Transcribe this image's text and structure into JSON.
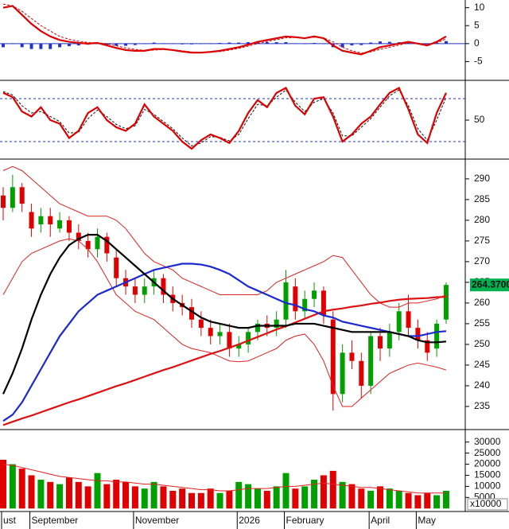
{
  "chart_data": [
    {
      "type": "line",
      "ylim": [
        -10,
        11.7
      ],
      "yticks": [
        10,
        5,
        0,
        -5
      ],
      "levels": [
        0
      ],
      "level_color": "#2030c0",
      "level_style": "solid",
      "series": [
        {
          "kind": "bar",
          "color": "#2233cc",
          "values": [
            -1,
            0,
            -1,
            -1.5,
            -1.5,
            -1.5,
            -1,
            -0.7,
            -0.5,
            -0.3,
            0,
            -0.5,
            -0.6,
            -0.6,
            -0.4,
            -0.1,
            0.3,
            0.1,
            -0.1,
            -0.2,
            -0.2,
            -0.1,
            0.1,
            0.2,
            0.3,
            0.3,
            0.4,
            0.5,
            0.4,
            0.4,
            0.4,
            0.1,
            -0.1,
            0.2,
            -0.1,
            -1,
            -1,
            -0.5,
            -0.4,
            0.3,
            0.6,
            0.5,
            0.4,
            0.3,
            -0.1,
            -0.2,
            0.3,
            0.7
          ]
        },
        {
          "kind": "line",
          "style": "dashed",
          "color": "#cc0000",
          "values": [
            11,
            10.5,
            9,
            7,
            5,
            3.5,
            2,
            1.2,
            0.7,
            0.3,
            0.2,
            0,
            -0.6,
            -1.2,
            -1.6,
            -1.9,
            -1.8,
            -1.6,
            -1.7,
            -2,
            -2.3,
            -2.4,
            -2.4,
            -2.2,
            -1.8,
            -1.3,
            -0.7,
            0,
            0.6,
            1.1,
            1.6,
            1.7,
            1.6,
            1.8,
            1.6,
            0.5,
            -1,
            -2,
            -2.6,
            -2.3,
            -1.6,
            -1,
            -0.4,
            0.2,
            0.1,
            -0.3,
            0.2,
            1.3
          ]
        },
        {
          "kind": "line",
          "style": "thick",
          "color": "#dd0000",
          "values": [
            10,
            10.5,
            8,
            5.5,
            3.5,
            2,
            1,
            0.5,
            0.2,
            0,
            0.2,
            -0.5,
            -1.2,
            -1.8,
            -2,
            -2,
            -1.5,
            -1.5,
            -1.8,
            -2.2,
            -2.5,
            -2.5,
            -2.3,
            -2,
            -1.5,
            -1,
            -0.3,
            0.5,
            1,
            1.5,
            2,
            1.8,
            1.5,
            2,
            1.5,
            -0.5,
            -2,
            -2.5,
            -3,
            -2,
            -1,
            -0.5,
            0,
            0.5,
            0,
            -0.5,
            0.5,
            2
          ]
        }
      ]
    },
    {
      "type": "line",
      "ylim": [
        -2.2,
        103.3
      ],
      "yticks": [
        50
      ],
      "levels": [
        80,
        20
      ],
      "level_color": "#2030c0",
      "level_style": "dashed",
      "series": [
        {
          "kind": "line",
          "style": "dashed",
          "color": "#111111",
          "values": [
            90,
            85,
            70,
            60,
            62,
            55,
            48,
            32,
            33,
            52,
            64,
            55,
            44,
            38,
            42,
            65,
            58,
            48,
            38,
            25,
            14,
            18,
            27,
            26,
            21,
            30,
            52,
            72,
            70,
            82,
            92,
            75,
            62,
            75,
            80,
            60,
            28,
            28,
            40,
            52,
            68,
            84,
            92,
            70,
            38,
            22,
            50,
            82
          ]
        },
        {
          "kind": "line",
          "style": "thick",
          "color": "#dd0000",
          "values": [
            88,
            82,
            62,
            55,
            68,
            50,
            45,
            25,
            35,
            60,
            68,
            50,
            40,
            35,
            45,
            72,
            55,
            45,
            35,
            20,
            10,
            22,
            30,
            25,
            18,
            35,
            60,
            78,
            68,
            88,
            95,
            70,
            58,
            80,
            82,
            55,
            20,
            30,
            45,
            55,
            72,
            88,
            95,
            65,
            30,
            18,
            60,
            88
          ]
        }
      ]
    },
    {
      "type": "candlestick",
      "ylim": [
        229.8,
        294.4
      ],
      "yticks": [
        235,
        240,
        245,
        250,
        255,
        260,
        265,
        270,
        275,
        280,
        285,
        290
      ],
      "up_color": "#00a000",
      "down_color": "#e00000",
      "open": [
        286,
        283,
        288,
        282,
        279,
        281,
        278,
        280,
        277,
        275,
        273,
        276,
        271,
        266,
        264,
        262,
        264,
        266,
        262,
        260,
        259,
        256,
        254,
        252,
        253,
        249,
        250,
        253,
        255,
        254,
        256,
        264,
        258,
        261,
        263,
        256,
        238,
        248,
        246,
        240,
        252,
        249,
        253,
        258,
        254,
        251,
        249,
        256
      ],
      "high": [
        288,
        291,
        289,
        284,
        283,
        283,
        282,
        281,
        279,
        277,
        278,
        277,
        273,
        268,
        266,
        266,
        268,
        267,
        264,
        262,
        261,
        258,
        256,
        255,
        255,
        252,
        254,
        256,
        257,
        258,
        268,
        266,
        263,
        265,
        264,
        258,
        250,
        251,
        248,
        253,
        254,
        255,
        260,
        262,
        256,
        253,
        256,
        265
      ],
      "low": [
        280,
        282,
        282,
        276,
        277,
        276,
        277,
        275,
        273,
        271,
        271,
        270,
        264,
        262,
        260,
        260,
        262,
        260,
        258,
        257,
        254,
        252,
        250,
        250,
        247,
        247,
        248,
        251,
        252,
        252,
        254,
        256,
        256,
        259,
        255,
        234,
        236,
        244,
        237,
        238,
        246,
        247,
        251,
        252,
        249,
        246,
        247,
        255
      ],
      "close": [
        283,
        288,
        284,
        278,
        281,
        279,
        280,
        277,
        275,
        273,
        276,
        272,
        266,
        264,
        262,
        264,
        266,
        262,
        260,
        259,
        256,
        254,
        252,
        253,
        249,
        250,
        253,
        255,
        254,
        256,
        265,
        258,
        261,
        263,
        257,
        238,
        248,
        246,
        240,
        252,
        249,
        253,
        258,
        254,
        251,
        248,
        255,
        264.37
      ],
      "last_price": {
        "value": 264.37,
        "label": "264.3700"
      },
      "last_price_color": "#00b050",
      "series": [
        {
          "kind": "line",
          "style": "thin",
          "color": "#dd2222",
          "values": [
            292,
            293,
            292,
            290,
            288,
            286,
            284,
            283,
            282,
            281,
            281,
            281,
            280,
            278,
            275,
            272,
            270,
            269,
            268,
            266,
            265,
            264,
            263,
            262,
            262,
            262,
            262,
            262,
            263,
            265,
            266,
            267,
            268,
            269,
            270,
            271.5,
            271,
            268,
            265,
            262,
            260,
            259,
            259,
            260,
            260,
            260.5,
            261,
            262
          ]
        },
        {
          "kind": "line",
          "style": "thin",
          "color": "#dd2222",
          "values": [
            262,
            266,
            270,
            272,
            273,
            274,
            275,
            275.5,
            275,
            273,
            270,
            266,
            262,
            260,
            258,
            257,
            256,
            254,
            252,
            250,
            249,
            248.5,
            248,
            247,
            246,
            245.8,
            246,
            247,
            248,
            249,
            251,
            252,
            252.5,
            250,
            246,
            240,
            235,
            235,
            237,
            239,
            241,
            243,
            244,
            245,
            245.5,
            245,
            244.5,
            243.8
          ]
        },
        {
          "kind": "line",
          "style": "thick",
          "color": "#dd1111",
          "values": [
            230.5,
            231.3,
            232.1,
            232.8,
            233.6,
            234.4,
            235.2,
            236,
            236.7,
            237.5,
            238.3,
            239.1,
            239.9,
            240.6,
            241.4,
            242.2,
            243,
            243.8,
            244.5,
            245.3,
            246.1,
            246.9,
            247.7,
            248.4,
            249.2,
            250,
            250.9,
            251.8,
            252.7,
            253.6,
            254.4,
            255.3,
            256.2,
            257.1,
            258,
            258.4,
            258.7,
            259.1,
            259.4,
            259.8,
            260.1,
            260.5,
            260.8,
            261,
            261.1,
            261.2,
            261.4,
            261.5
          ]
        },
        {
          "kind": "line",
          "style": "thick",
          "color": "#1a2ad0",
          "values": [
            231.5,
            233,
            236,
            240,
            244,
            248,
            252,
            255,
            258,
            260,
            262,
            263,
            264,
            265,
            266,
            267,
            268,
            268.5,
            269,
            269.5,
            269.5,
            269.3,
            268.8,
            268,
            267,
            265.5,
            264,
            263,
            262,
            261,
            260,
            259.5,
            258.5,
            258,
            257,
            256.5,
            255.5,
            255,
            254.5,
            254,
            253.5,
            253,
            252.5,
            252,
            252,
            252.5,
            253,
            253.2
          ]
        },
        {
          "kind": "line",
          "style": "thick",
          "color": "#000000",
          "values": [
            238,
            243,
            249,
            256,
            262,
            267,
            271,
            274,
            275.5,
            276.5,
            276.5,
            275,
            273,
            271,
            269,
            267,
            265,
            263,
            261,
            259.5,
            258,
            256.5,
            255.5,
            255,
            254.5,
            254,
            254,
            254.5,
            254.5,
            254.5,
            254.5,
            255,
            255,
            255,
            254.5,
            254,
            253.5,
            253,
            253,
            253,
            253,
            253,
            252.5,
            252,
            251,
            250.5,
            250.5,
            250.7
          ]
        }
      ]
    },
    {
      "type": "bar",
      "ylim": [
        -634,
        35282
      ],
      "yticks": [
        5000,
        10000,
        15000,
        20000,
        25000,
        30000
      ],
      "scale_label": "x10000",
      "up_color": "#00a000",
      "down_color": "#e00000",
      "categories": [
        "ust",
        null,
        null,
        "September",
        null,
        null,
        null,
        null,
        null,
        null,
        null,
        null,
        null,
        null,
        "November",
        null,
        null,
        null,
        null,
        null,
        null,
        null,
        null,
        null,
        null,
        "2026",
        null,
        null,
        null,
        null,
        "February",
        null,
        null,
        null,
        null,
        null,
        null,
        null,
        null,
        "April",
        null,
        null,
        null,
        null,
        "May",
        null,
        null,
        null
      ],
      "values": [
        22000,
        20000,
        18000,
        15000,
        13000,
        12000,
        11000,
        14000,
        12000,
        10000,
        16000,
        11000,
        13000,
        12000,
        10000,
        9000,
        12000,
        10000,
        8000,
        9000,
        7000,
        7000,
        9000,
        7000,
        8000,
        12000,
        11000,
        9000,
        8000,
        10000,
        16000,
        9000,
        10000,
        13000,
        15000,
        17000,
        12000,
        11000,
        9000,
        8000,
        10000,
        9000,
        8000,
        7000,
        6000,
        7000,
        6000,
        8000
      ],
      "series": [
        {
          "kind": "line",
          "style": "thin",
          "color": "#dd2222",
          "values": [
            20000,
            19500,
            18500,
            17500,
            16500,
            15500,
            14500,
            14000,
            13500,
            13000,
            12500,
            12500,
            12000,
            12000,
            11500,
            11000,
            11000,
            10500,
            10000,
            9500,
            9000,
            8500,
            8500,
            8000,
            8000,
            8500,
            9000,
            9000,
            9000,
            9500,
            10000,
            10000,
            10500,
            11000,
            11500,
            11000,
            10500,
            10000,
            9500,
            9500,
            9000,
            8500,
            8000,
            7500,
            7000,
            7000,
            7000,
            7000
          ]
        }
      ]
    }
  ]
}
